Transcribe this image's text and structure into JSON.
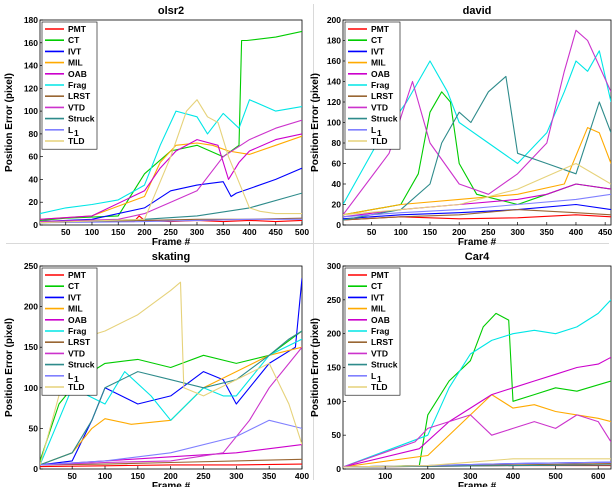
{
  "colors": {
    "PMT": "#ff0000",
    "CT": "#00cc00",
    "IVT": "#0000ff",
    "MIL": "#ffaa00",
    "OAB": "#cc00cc",
    "Frag": "#00e6e6",
    "LRST": "#996633",
    "VTD": "#cc33cc",
    "Struck": "#2e8b8b",
    "L1": "#8080ff",
    "TLD": "#e6d27a"
  },
  "legend": [
    "PMT",
    "CT",
    "IVT",
    "MIL",
    "OAB",
    "Frag",
    "LRST",
    "VTD",
    "Struck",
    "L",
    "TLD"
  ],
  "legend_l1_subscript": "1",
  "chart_data": [
    {
      "type": "line",
      "title": "olsr2",
      "xlabel": "Frame #",
      "ylabel": "Position Error (pixel)",
      "xlim": [
        1,
        500
      ],
      "ylim": [
        0,
        180
      ],
      "xticks": [
        50,
        100,
        150,
        200,
        250,
        300,
        350,
        400,
        450,
        500
      ],
      "yticks": [
        0,
        20,
        40,
        60,
        80,
        100,
        120,
        140,
        160,
        180
      ],
      "series": [
        {
          "name": "PMT",
          "x": [
            1,
            100,
            180,
            190,
            200,
            250,
            300,
            350,
            400,
            450,
            500
          ],
          "y": [
            3,
            4,
            3,
            8,
            4,
            3,
            4,
            3,
            4,
            3,
            4
          ]
        },
        {
          "name": "CT",
          "x": [
            1,
            50,
            150,
            200,
            250,
            300,
            350,
            380,
            385,
            395,
            450,
            500
          ],
          "y": [
            4,
            6,
            8,
            45,
            65,
            70,
            60,
            70,
            162,
            162,
            165,
            170
          ]
        },
        {
          "name": "IVT",
          "x": [
            1,
            100,
            200,
            250,
            300,
            350,
            365,
            375,
            400,
            450,
            500
          ],
          "y": [
            3,
            5,
            15,
            30,
            35,
            38,
            25,
            28,
            32,
            40,
            50
          ]
        },
        {
          "name": "MIL",
          "x": [
            1,
            100,
            200,
            230,
            260,
            300,
            330,
            360,
            400,
            450,
            500
          ],
          "y": [
            5,
            8,
            25,
            55,
            70,
            72,
            70,
            65,
            62,
            70,
            78
          ]
        },
        {
          "name": "OAB",
          "x": [
            1,
            100,
            200,
            230,
            260,
            300,
            340,
            360,
            380,
            400,
            450,
            500
          ],
          "y": [
            5,
            8,
            30,
            50,
            65,
            75,
            70,
            40,
            55,
            65,
            75,
            80
          ]
        },
        {
          "name": "Frag",
          "x": [
            1,
            50,
            100,
            150,
            200,
            230,
            260,
            300,
            320,
            350,
            380,
            400,
            450,
            500
          ],
          "y": [
            10,
            15,
            18,
            22,
            35,
            70,
            100,
            95,
            80,
            98,
            85,
            110,
            100,
            104
          ]
        },
        {
          "name": "LRST",
          "x": [
            1,
            200,
            300,
            400,
            500
          ],
          "y": [
            2,
            4,
            5,
            5,
            6
          ]
        },
        {
          "name": "VTD",
          "x": [
            1,
            150,
            200,
            250,
            300,
            350,
            400,
            450,
            500
          ],
          "y": [
            3,
            5,
            10,
            20,
            30,
            60,
            75,
            85,
            92
          ]
        },
        {
          "name": "Struck",
          "x": [
            1,
            200,
            300,
            400,
            500
          ],
          "y": [
            2,
            5,
            8,
            15,
            28
          ]
        },
        {
          "name": "L1",
          "x": [
            1,
            200,
            300,
            400,
            500
          ],
          "y": [
            2,
            3,
            4,
            5,
            5
          ]
        },
        {
          "name": "TLD",
          "x": [
            1,
            200,
            250,
            280,
            300,
            320,
            340,
            360,
            400,
            420,
            450,
            500
          ],
          "y": [
            2,
            5,
            60,
            100,
            110,
            95,
            90,
            60,
            15,
            12,
            10,
            10
          ]
        }
      ]
    },
    {
      "type": "line",
      "title": "david",
      "xlabel": "Frame #",
      "ylabel": "Position Error (pixel)",
      "xlim": [
        1,
        460
      ],
      "ylim": [
        0,
        200
      ],
      "xticks": [
        50,
        100,
        150,
        200,
        250,
        300,
        350,
        400,
        450
      ],
      "yticks": [
        0,
        20,
        40,
        60,
        80,
        100,
        120,
        140,
        160,
        180,
        200
      ],
      "series": [
        {
          "name": "PMT",
          "x": [
            1,
            100,
            200,
            300,
            400,
            460
          ],
          "y": [
            5,
            8,
            6,
            7,
            10,
            8
          ]
        },
        {
          "name": "CT",
          "x": [
            1,
            100,
            130,
            150,
            170,
            185,
            200,
            230,
            300,
            350,
            400,
            460
          ],
          "y": [
            10,
            20,
            50,
            110,
            130,
            120,
            60,
            30,
            20,
            30,
            40,
            35
          ]
        },
        {
          "name": "IVT",
          "x": [
            1,
            100,
            200,
            300,
            400,
            460
          ],
          "y": [
            6,
            10,
            12,
            15,
            20,
            15
          ]
        },
        {
          "name": "MIL",
          "x": [
            1,
            100,
            200,
            300,
            380,
            420,
            440,
            460
          ],
          "y": [
            10,
            20,
            25,
            30,
            40,
            95,
            90,
            60
          ]
        },
        {
          "name": "OAB",
          "x": [
            1,
            100,
            200,
            300,
            350,
            400,
            460
          ],
          "y": [
            8,
            15,
            20,
            25,
            30,
            40,
            35
          ]
        },
        {
          "name": "Frag",
          "x": [
            1,
            60,
            110,
            150,
            180,
            200,
            250,
            300,
            350,
            380,
            400,
            420,
            440,
            460
          ],
          "y": [
            20,
            80,
            120,
            160,
            130,
            100,
            80,
            60,
            90,
            130,
            160,
            150,
            170,
            120
          ]
        },
        {
          "name": "LRST",
          "x": [
            1,
            100,
            200,
            300,
            400,
            460
          ],
          "y": [
            5,
            8,
            10,
            15,
            12,
            10
          ]
        },
        {
          "name": "VTD",
          "x": [
            1,
            80,
            120,
            150,
            200,
            250,
            300,
            350,
            380,
            400,
            420,
            460
          ],
          "y": [
            10,
            70,
            140,
            80,
            40,
            30,
            50,
            80,
            150,
            190,
            180,
            130
          ]
        },
        {
          "name": "Struck",
          "x": [
            1,
            100,
            150,
            170,
            200,
            220,
            250,
            280,
            300,
            350,
            400,
            440,
            460
          ],
          "y": [
            5,
            15,
            40,
            80,
            110,
            100,
            130,
            145,
            70,
            60,
            50,
            120,
            90
          ]
        },
        {
          "name": "L1",
          "x": [
            1,
            100,
            200,
            300,
            400,
            460
          ],
          "y": [
            8,
            12,
            15,
            20,
            25,
            30
          ]
        },
        {
          "name": "TLD",
          "x": [
            1,
            100,
            200,
            300,
            400,
            460
          ],
          "y": [
            10,
            15,
            20,
            35,
            60,
            40
          ]
        }
      ]
    },
    {
      "type": "line",
      "title": "skating",
      "xlabel": "Frame #",
      "ylabel": "Position Error (pixel)",
      "xlim": [
        1,
        400
      ],
      "ylim": [
        0,
        250
      ],
      "xticks": [
        50,
        100,
        150,
        200,
        250,
        300,
        350,
        400
      ],
      "yticks": [
        0,
        50,
        100,
        150,
        200,
        250
      ],
      "series": [
        {
          "name": "PMT",
          "x": [
            1,
            100,
            200,
            300,
            400
          ],
          "y": [
            3,
            4,
            5,
            5,
            6
          ]
        },
        {
          "name": "CT",
          "x": [
            1,
            30,
            60,
            100,
            150,
            200,
            250,
            300,
            350,
            400
          ],
          "y": [
            10,
            80,
            110,
            130,
            135,
            125,
            140,
            130,
            140,
            170
          ]
        },
        {
          "name": "IVT",
          "x": [
            1,
            50,
            80,
            100,
            150,
            200,
            250,
            280,
            300,
            350,
            390,
            400
          ],
          "y": [
            5,
            10,
            60,
            100,
            80,
            90,
            120,
            110,
            80,
            130,
            150,
            235
          ]
        },
        {
          "name": "MIL",
          "x": [
            1,
            50,
            80,
            100,
            140,
            200,
            250,
            300,
            350,
            400
          ],
          "y": [
            5,
            20,
            50,
            62,
            55,
            60,
            100,
            120,
            140,
            150
          ]
        },
        {
          "name": "OAB",
          "x": [
            1,
            100,
            200,
            300,
            350,
            400
          ],
          "y": [
            5,
            10,
            15,
            20,
            25,
            30
          ]
        },
        {
          "name": "Frag",
          "x": [
            1,
            50,
            100,
            130,
            170,
            200,
            250,
            280,
            300,
            350,
            400
          ],
          "y": [
            5,
            100,
            80,
            120,
            90,
            60,
            100,
            90,
            90,
            140,
            160
          ]
        },
        {
          "name": "LRST",
          "x": [
            1,
            100,
            200,
            300,
            400
          ],
          "y": [
            5,
            6,
            8,
            10,
            12
          ]
        },
        {
          "name": "VTD",
          "x": [
            1,
            100,
            200,
            280,
            320,
            350,
            400
          ],
          "y": [
            5,
            8,
            10,
            20,
            60,
            100,
            150
          ]
        },
        {
          "name": "Struck",
          "x": [
            1,
            50,
            80,
            100,
            150,
            200,
            250,
            300,
            350,
            380,
            400
          ],
          "y": [
            5,
            20,
            60,
            100,
            120,
            110,
            100,
            110,
            140,
            160,
            170
          ]
        },
        {
          "name": "L1",
          "x": [
            1,
            100,
            200,
            300,
            350,
            400
          ],
          "y": [
            5,
            10,
            20,
            40,
            60,
            50
          ]
        },
        {
          "name": "TLD",
          "x": [
            1,
            50,
            60,
            100,
            150,
            200,
            215,
            220,
            250,
            300,
            350,
            380,
            400
          ],
          "y": [
            5,
            150,
            160,
            170,
            190,
            220,
            230,
            100,
            90,
            110,
            130,
            80,
            30
          ]
        }
      ]
    },
    {
      "type": "line",
      "title": "Car4",
      "xlabel": "Frame #",
      "ylabel": "Position Error (pixel)",
      "xlim": [
        1,
        630
      ],
      "ylim": [
        0,
        300
      ],
      "xticks": [
        100,
        200,
        300,
        400,
        500,
        600
      ],
      "yticks": [
        0,
        50,
        100,
        150,
        200,
        250,
        300
      ],
      "series": [
        {
          "name": "PMT",
          "x": [
            1,
            200,
            400,
            630
          ],
          "y": [
            3,
            4,
            5,
            5
          ]
        },
        {
          "name": "CT",
          "x": [
            1,
            180,
            200,
            250,
            300,
            330,
            360,
            390,
            400,
            450,
            500,
            550,
            630
          ],
          "y": [
            3,
            5,
            80,
            130,
            160,
            210,
            230,
            220,
            100,
            110,
            120,
            115,
            130
          ]
        },
        {
          "name": "IVT",
          "x": [
            1,
            200,
            400,
            630
          ],
          "y": [
            3,
            5,
            8,
            10
          ]
        },
        {
          "name": "MIL",
          "x": [
            1,
            200,
            300,
            350,
            400,
            450,
            500,
            550,
            600,
            630
          ],
          "y": [
            3,
            20,
            80,
            110,
            90,
            95,
            85,
            80,
            75,
            70
          ]
        },
        {
          "name": "OAB",
          "x": [
            1,
            180,
            250,
            300,
            350,
            400,
            450,
            500,
            550,
            600,
            630
          ],
          "y": [
            3,
            30,
            70,
            90,
            110,
            120,
            130,
            140,
            150,
            155,
            165
          ]
        },
        {
          "name": "Frag",
          "x": [
            1,
            200,
            250,
            300,
            350,
            400,
            450,
            500,
            550,
            600,
            630
          ],
          "y": [
            3,
            50,
            120,
            170,
            190,
            200,
            205,
            200,
            210,
            230,
            250
          ]
        },
        {
          "name": "LRST",
          "x": [
            1,
            200,
            400,
            630
          ],
          "y": [
            3,
            5,
            6,
            8
          ]
        },
        {
          "name": "VTD",
          "x": [
            1,
            170,
            200,
            250,
            300,
            350,
            400,
            450,
            500,
            550,
            600,
            630
          ],
          "y": [
            3,
            40,
            60,
            70,
            80,
            50,
            60,
            70,
            60,
            80,
            70,
            40
          ]
        },
        {
          "name": "Struck",
          "x": [
            1,
            200,
            400,
            630
          ],
          "y": [
            3,
            4,
            5,
            6
          ]
        },
        {
          "name": "L1",
          "x": [
            1,
            200,
            400,
            630
          ],
          "y": [
            3,
            5,
            8,
            10
          ]
        },
        {
          "name": "TLD",
          "x": [
            1,
            200,
            300,
            400,
            630
          ],
          "y": [
            3,
            5,
            10,
            15,
            15
          ]
        }
      ]
    }
  ]
}
